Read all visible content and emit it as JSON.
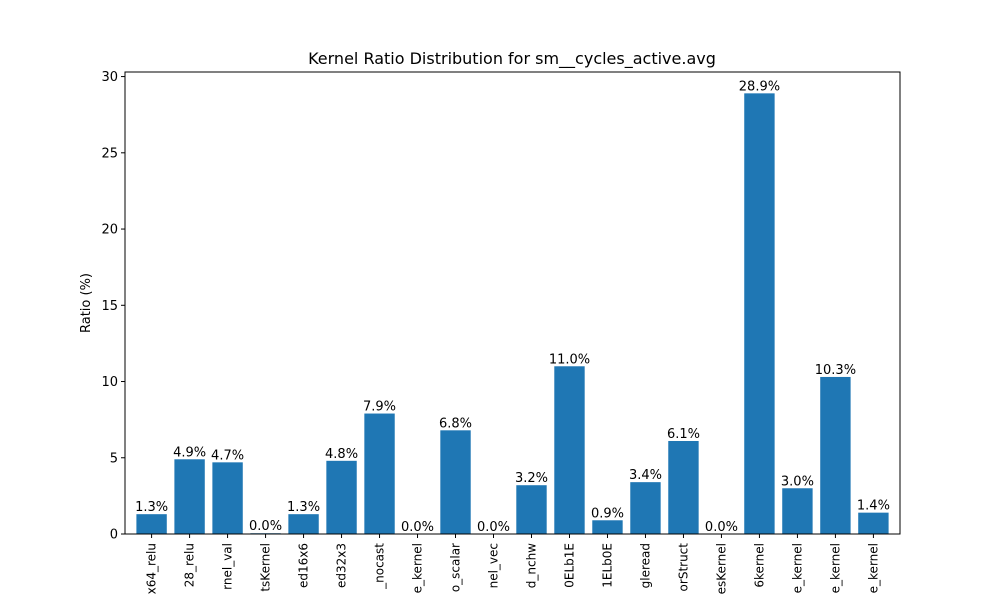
{
  "chart_data": {
    "type": "bar",
    "title": "Kernel Ratio Distribution for sm__cycles_active.avg",
    "xlabel": "",
    "ylabel": "Ratio (%)",
    "ylim": [
      0,
      30.3
    ],
    "yticks": [
      0,
      5,
      10,
      15,
      20,
      25,
      30
    ],
    "grid": false,
    "bar_color": "#1f77b4",
    "categories": [
      "x64_relu",
      "28_relu",
      "rnel_val",
      "tsKernel",
      "ed16x6",
      "ed32x3",
      "_nocast",
      "e_kernel",
      "o_scalar",
      "nel_vec",
      "d_nchw",
      "0ELb1E",
      "1ELb0E",
      "gleread",
      "orStruct",
      "esKernel",
      "6kernel",
      "e_kernel",
      "e_kernel",
      "e_kernel"
    ],
    "values": [
      1.3,
      4.9,
      4.7,
      0.05,
      1.3,
      4.8,
      7.9,
      0.0,
      6.8,
      0.0,
      3.2,
      11.0,
      0.9,
      3.4,
      6.1,
      0.0,
      28.9,
      3.0,
      10.3,
      1.4
    ],
    "labels": [
      "1.3%",
      "4.9%",
      "4.7%",
      "0.0%",
      "1.3%",
      "4.8%",
      "7.9%",
      "0.0%",
      "6.8%",
      "0.0%",
      "3.2%",
      "11.0%",
      "0.9%",
      "3.4%",
      "6.1%",
      "0.0%",
      "28.9%",
      "3.0%",
      "10.3%",
      "1.4%"
    ]
  }
}
